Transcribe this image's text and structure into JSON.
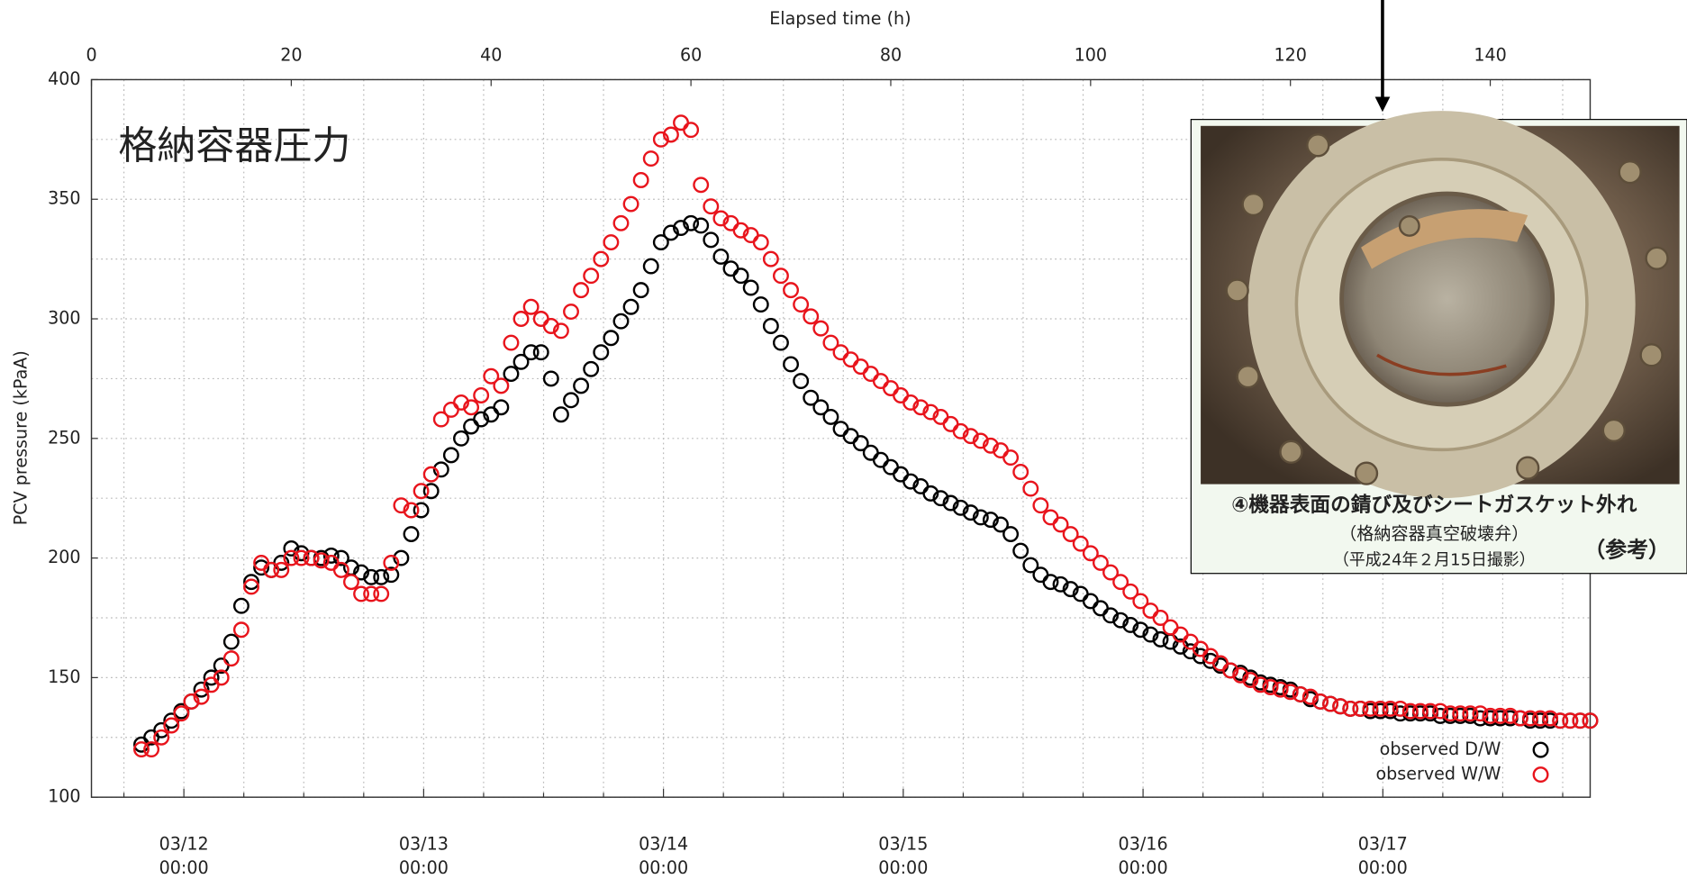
{
  "chart_data": {
    "type": "scatter",
    "annotation": "格納容器圧力",
    "xlabel": "Elapsed time (h)",
    "ylabel": "PCV pressure (kPaA)",
    "xlim": [
      0,
      150
    ],
    "xticks": [
      0,
      20,
      40,
      60,
      80,
      100,
      120,
      140
    ],
    "x2ticks": [
      {
        "value": 9.25,
        "label": "03/12\n00:00"
      },
      {
        "value": 33.25,
        "label": "03/13\n00:00"
      },
      {
        "value": 57.25,
        "label": "03/14\n00:00"
      },
      {
        "value": 81.25,
        "label": "03/15\n00:00"
      },
      {
        "value": 105.25,
        "label": "03/16\n00:00"
      },
      {
        "value": 129.25,
        "label": "03/17\n00:00"
      }
    ],
    "x2minorticks": [
      3.25,
      15.25,
      21.25,
      27.25,
      39.25,
      45.25,
      51.25,
      63.25,
      69.25,
      75.25,
      87.25,
      93.25,
      99.25,
      111.25,
      117.25,
      123.25,
      135.25,
      141.25,
      147.25
    ],
    "ylim": [
      100,
      400
    ],
    "yticks": [
      100,
      150,
      200,
      250,
      300,
      350,
      400
    ],
    "yminorticks": [
      125,
      175,
      225,
      275,
      325,
      375
    ],
    "grid": true,
    "legend": "lower right",
    "x": [
      5,
      6,
      7,
      8,
      9,
      10,
      11,
      12,
      13,
      14,
      15,
      16,
      17,
      18,
      19,
      20,
      21,
      22,
      23,
      24,
      25,
      26,
      27,
      28,
      29,
      30,
      31,
      32,
      33,
      34,
      35,
      36,
      37,
      38,
      39,
      40,
      41,
      42,
      43,
      44,
      45,
      46,
      47,
      48,
      49,
      50,
      51,
      52,
      53,
      54,
      55,
      56,
      57,
      58,
      59,
      60,
      61,
      62,
      63,
      64,
      65,
      66,
      67,
      68,
      69,
      70,
      71,
      72,
      73,
      74,
      75,
      76,
      77,
      78,
      79,
      80,
      81,
      82,
      83,
      84,
      85,
      86,
      87,
      88,
      89,
      90,
      91,
      92,
      93,
      94,
      95,
      96,
      97,
      98,
      99,
      100,
      101,
      102,
      103,
      104,
      105,
      106,
      107,
      108,
      109,
      110,
      111,
      112,
      113,
      114,
      115,
      116,
      117,
      118,
      119,
      120,
      121,
      122,
      123,
      124,
      125,
      126,
      127,
      128,
      129,
      130,
      131,
      132,
      133,
      134,
      135,
      136,
      137,
      138,
      139,
      140,
      141,
      142,
      143,
      144,
      145,
      146,
      147,
      148,
      149,
      150
    ],
    "series": [
      {
        "name": "observed D/W",
        "color": "#000000",
        "values": [
          122,
          125,
          128,
          132,
          136,
          140,
          145,
          150,
          155,
          165,
          180,
          190,
          196,
          195,
          198,
          204,
          202,
          200,
          200,
          201,
          200,
          196,
          194,
          192,
          192,
          193,
          200,
          210,
          220,
          228,
          237,
          243,
          250,
          255,
          258,
          260,
          263,
          277,
          282,
          286,
          286,
          275,
          260,
          266,
          272,
          279,
          286,
          292,
          299,
          305,
          312,
          322,
          332,
          336,
          338,
          340,
          339,
          333,
          326,
          321,
          318,
          313,
          306,
          297,
          290,
          281,
          274,
          267,
          263,
          259,
          254,
          251,
          248,
          244,
          241,
          238,
          235,
          232,
          230,
          227,
          225,
          223,
          221,
          219,
          217,
          216,
          214,
          210,
          203,
          197,
          193,
          190,
          189,
          187,
          185,
          182,
          179,
          176,
          174,
          172,
          170,
          168,
          166,
          165,
          163,
          161,
          159,
          157,
          155,
          153,
          152,
          150,
          148,
          147,
          146,
          145,
          143,
          141,
          140,
          139,
          138,
          137,
          137,
          136,
          136,
          136,
          135,
          135,
          135,
          135,
          134,
          134,
          134,
          134,
          133,
          133,
          133,
          133,
          133,
          132,
          132,
          132,
          132,
          132,
          132,
          132
        ]
      },
      {
        "name": "observed W/W",
        "color": "#e8141c",
        "values": [
          120,
          120,
          125,
          130,
          135,
          140,
          142,
          147,
          150,
          158,
          170,
          188,
          198,
          195,
          195,
          200,
          200,
          200,
          199,
          198,
          195,
          190,
          185,
          185,
          185,
          198,
          222,
          220,
          228,
          235,
          258,
          262,
          265,
          263,
          268,
          276,
          272,
          290,
          300,
          305,
          300,
          297,
          295,
          303,
          312,
          318,
          325,
          332,
          340,
          348,
          358,
          367,
          375,
          377,
          382,
          379,
          356,
          347,
          342,
          340,
          337,
          335,
          332,
          325,
          318,
          312,
          306,
          301,
          296,
          290,
          286,
          283,
          280,
          277,
          274,
          271,
          268,
          265,
          263,
          261,
          259,
          256,
          253,
          251,
          249,
          247,
          245,
          242,
          236,
          229,
          222,
          217,
          214,
          210,
          206,
          202,
          198,
          194,
          190,
          186,
          182,
          178,
          175,
          171,
          168,
          165,
          162,
          159,
          156,
          153,
          151,
          149,
          147,
          146,
          145,
          144,
          143,
          142,
          140,
          139,
          138,
          137,
          137,
          137,
          137,
          137,
          137,
          136,
          136,
          136,
          136,
          135,
          135,
          135,
          135,
          134,
          134,
          134,
          133,
          133,
          133,
          133,
          132,
          132,
          132,
          132
        ]
      }
    ]
  },
  "photo": {
    "caption": "④機器表面の錆び及びシートガスケット外れ",
    "subcaption": "（格納容器真空破壊弁）",
    "date": "（平成24年２月15日撮影）",
    "note": "（参考）"
  }
}
